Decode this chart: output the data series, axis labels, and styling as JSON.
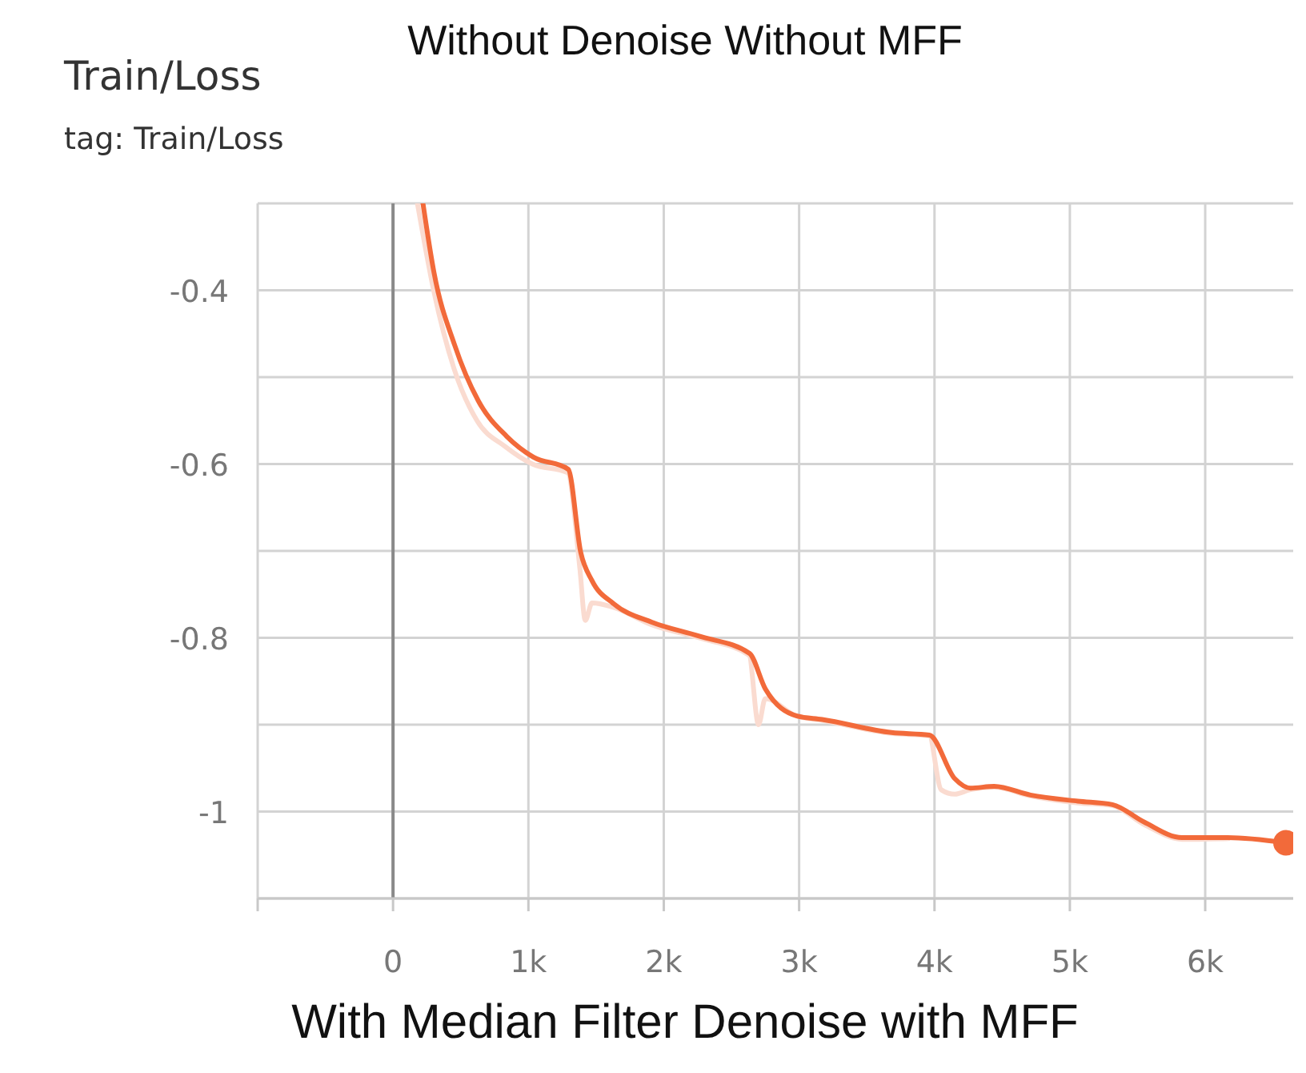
{
  "chart_data": {
    "type": "line",
    "title": "Train/Loss",
    "subtitle": "tag: Train/Loss",
    "annotations": [
      "Without Denoise Without MFF",
      "With Median Filter Denoise with MFF"
    ],
    "xlim": [
      -1000,
      6650
    ],
    "ylim": [
      -1.1,
      -0.3
    ],
    "xticks": [
      {
        "value": -1000,
        "label": null
      },
      0,
      {
        "value": 1000,
        "label": "1k"
      },
      {
        "value": 2000,
        "label": "2k"
      },
      {
        "value": 3000,
        "label": "3k"
      },
      {
        "value": 4000,
        "label": "4k"
      },
      {
        "value": 5000,
        "label": "5k"
      },
      {
        "value": 6000,
        "label": "6k"
      }
    ],
    "yticks": [
      {
        "value": -1.1,
        "label": null
      },
      {
        "value": -1,
        "label": "-1"
      },
      {
        "value": -0.9,
        "label": null
      },
      -0.8,
      {
        "value": -0.7,
        "label": null
      },
      -0.6,
      {
        "value": -0.5,
        "label": null
      },
      -0.4,
      {
        "value": -0.3,
        "label": null
      }
    ],
    "grid": true,
    "series": [
      {
        "color": "#fadbd0",
        "x": [
          180,
          300,
          450,
          620,
          830,
          1030,
          1290,
          1380,
          1420,
          1470,
          1630,
          1910,
          2260,
          2630,
          2700,
          2750,
          2980,
          3170,
          3680,
          3960,
          4050,
          4150,
          4260,
          4440,
          4710,
          5060,
          5310,
          5550,
          5830,
          6170
        ],
        "values": [
          -0.3,
          -0.4,
          -0.49,
          -0.55,
          -0.58,
          -0.6,
          -0.61,
          -0.72,
          -0.78,
          -0.76,
          -0.765,
          -0.785,
          -0.8,
          -0.82,
          -0.9,
          -0.87,
          -0.89,
          -0.895,
          -0.91,
          -0.913,
          -0.975,
          -0.98,
          -0.975,
          -0.972,
          -0.982,
          -0.99,
          -0.993,
          -1.015,
          -1.032,
          -1.031
        ]
      },
      {
        "color": "#f26a3a",
        "x": [
          221,
          303,
          455,
          629,
          839,
          1037,
          1294,
          1387,
          1469,
          1632,
          1911,
          2261,
          2634,
          2751,
          2984,
          3170,
          3683,
          3963,
          4149,
          4266,
          4441,
          4709,
          5058,
          5315,
          5548,
          5828,
          6166,
          6597
        ],
        "values": [
          -0.3,
          -0.38,
          -0.463,
          -0.527,
          -0.568,
          -0.592,
          -0.606,
          -0.702,
          -0.734,
          -0.761,
          -0.782,
          -0.798,
          -0.818,
          -0.859,
          -0.89,
          -0.894,
          -0.909,
          -0.912,
          -0.962,
          -0.973,
          -0.971,
          -0.981,
          -0.988,
          -0.992,
          -1.012,
          -1.03,
          -1.03,
          -1.036
        ]
      }
    ]
  }
}
